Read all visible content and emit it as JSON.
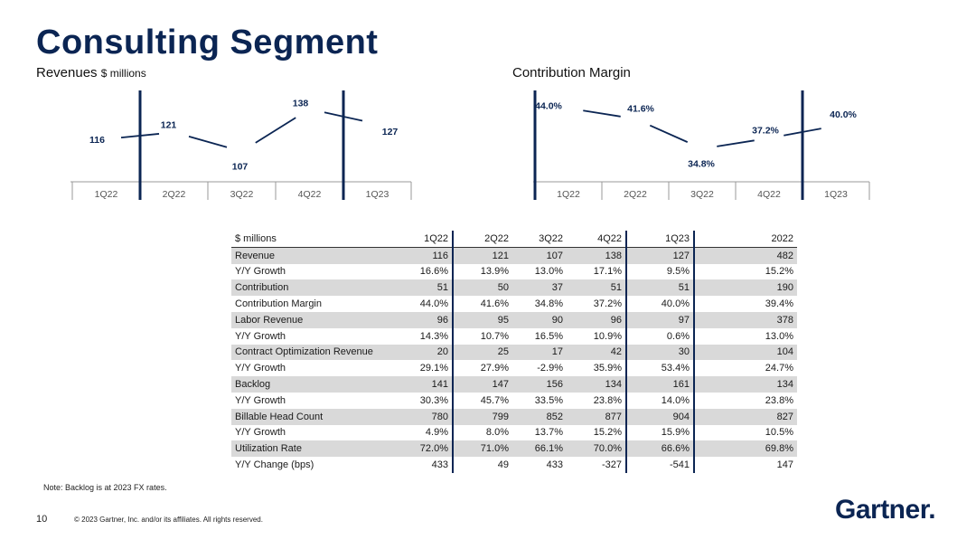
{
  "page": {
    "title": "Consulting Segment",
    "note": "Note: Backlog is at 2023 FX rates.",
    "page_number": "10",
    "copyright": "© 2023 Gartner, Inc. and/or its affiliates. All rights reserved.",
    "logo": "Gartner",
    "logo_mark": "."
  },
  "colors": {
    "navy": "#0b2553",
    "line": "#0b2553",
    "shade": "#d9d9d9"
  },
  "chart_data": [
    {
      "type": "line",
      "title": "Revenues",
      "title_unit": "$ millions",
      "categories": [
        "1Q22",
        "2Q22",
        "3Q22",
        "4Q22",
        "1Q23"
      ],
      "values": [
        116,
        121,
        107,
        138,
        127
      ],
      "labels": [
        "116",
        "121",
        "107",
        "138",
        "127"
      ],
      "ylim": [
        100,
        145
      ]
    },
    {
      "type": "line",
      "title": "Contribution Margin",
      "categories": [
        "1Q22",
        "2Q22",
        "3Q22",
        "4Q22",
        "1Q23"
      ],
      "values": [
        44.0,
        41.6,
        34.8,
        37.2,
        40.0
      ],
      "labels": [
        "44.0%",
        "41.6%",
        "34.8%",
        "37.2%",
        "40.0%"
      ],
      "ylim": [
        32,
        46
      ]
    },
    {
      "type": "table",
      "columns": [
        "$ millions",
        "1Q22",
        "2Q22",
        "3Q22",
        "4Q22",
        "1Q23",
        "2022"
      ],
      "rows": [
        [
          "Revenue",
          "116",
          "121",
          "107",
          "138",
          "127",
          "482"
        ],
        [
          "Y/Y Growth",
          "16.6%",
          "13.9%",
          "13.0%",
          "17.1%",
          "9.5%",
          "15.2%"
        ],
        [
          "Contribution",
          "51",
          "50",
          "37",
          "51",
          "51",
          "190"
        ],
        [
          "Contribution Margin",
          "44.0%",
          "41.6%",
          "34.8%",
          "37.2%",
          "40.0%",
          "39.4%"
        ],
        [
          "Labor Revenue",
          "96",
          "95",
          "90",
          "96",
          "97",
          "378"
        ],
        [
          "Y/Y Growth",
          "14.3%",
          "10.7%",
          "16.5%",
          "10.9%",
          "0.6%",
          "13.0%"
        ],
        [
          "Contract Optimization Revenue",
          "20",
          "25",
          "17",
          "42",
          "30",
          "104"
        ],
        [
          "Y/Y Growth",
          "29.1%",
          "27.9%",
          "-2.9%",
          "35.9%",
          "53.4%",
          "24.7%"
        ],
        [
          "Backlog",
          "141",
          "147",
          "156",
          "134",
          "161",
          "134"
        ],
        [
          "Y/Y Growth",
          "30.3%",
          "45.7%",
          "33.5%",
          "23.8%",
          "14.0%",
          "23.8%"
        ],
        [
          "Billable Head Count",
          "780",
          "799",
          "852",
          "877",
          "904",
          "827"
        ],
        [
          "Y/Y Growth",
          "4.9%",
          "8.0%",
          "13.7%",
          "15.2%",
          "15.9%",
          "10.5%"
        ],
        [
          "Utilization Rate",
          "72.0%",
          "71.0%",
          "66.1%",
          "70.0%",
          "66.6%",
          "69.8%"
        ],
        [
          "Y/Y Change (bps)",
          "433",
          "49",
          "433",
          "-327",
          "-541",
          "147"
        ]
      ]
    }
  ]
}
